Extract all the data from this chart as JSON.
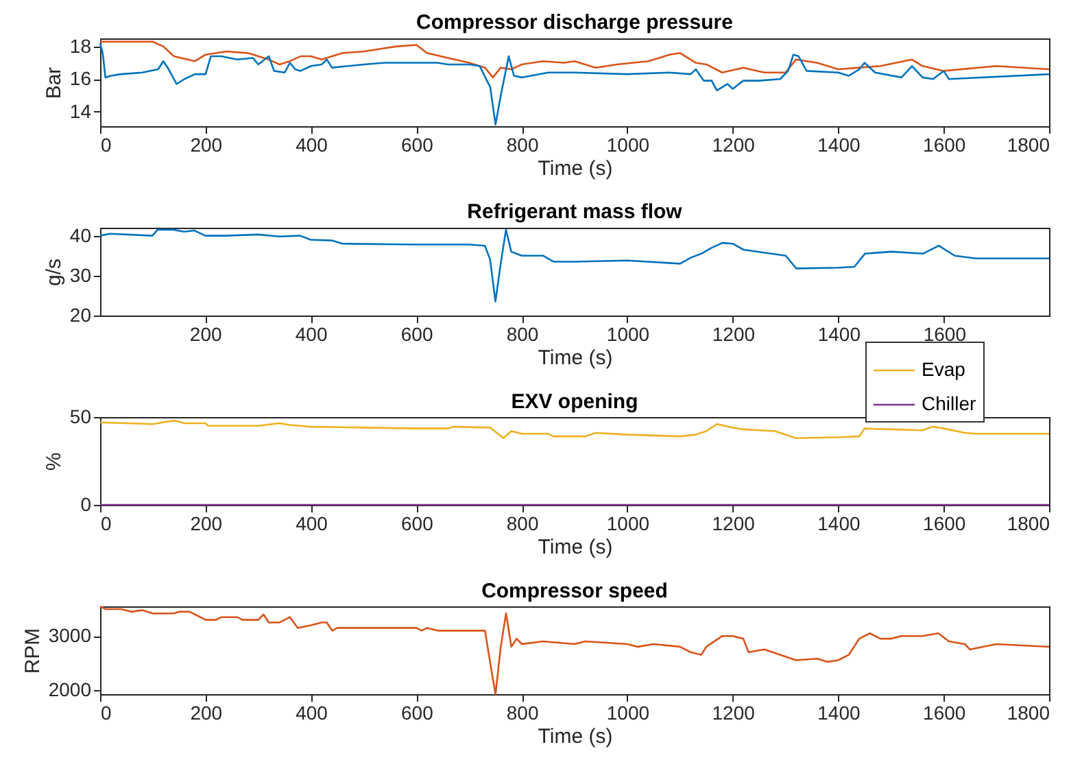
{
  "chart_data": [
    {
      "type": "line",
      "title": "Compressor discharge pressure",
      "xlabel": "Time (s)",
      "ylabel": "Bar",
      "xlim": [
        0,
        1800
      ],
      "xticks": [
        0,
        200,
        400,
        600,
        800,
        1000,
        1200,
        1400,
        1600,
        1800
      ],
      "ylim": [
        13.1,
        18.5
      ],
      "yticks": [
        14,
        16,
        18
      ],
      "grid": false,
      "legend": false,
      "series": [
        {
          "color": "#d95319",
          "x": [
            0,
            100,
            120,
            140,
            180,
            200,
            240,
            280,
            320,
            340,
            360,
            380,
            400,
            420,
            460,
            500,
            540,
            560,
            600,
            620,
            660,
            700,
            730,
            740,
            745,
            760,
            780,
            800,
            840,
            880,
            900,
            940,
            980,
            1040,
            1080,
            1100,
            1130,
            1150,
            1180,
            1220,
            1260,
            1290,
            1300,
            1320,
            1360,
            1400,
            1440,
            1480,
            1540,
            1560,
            1600,
            1700,
            1800
          ],
          "values": [
            18.3,
            18.3,
            18.0,
            17.4,
            17.1,
            17.5,
            17.7,
            17.6,
            17.2,
            16.9,
            17.1,
            17.4,
            17.4,
            17.2,
            17.6,
            17.7,
            17.9,
            18.0,
            18.1,
            17.6,
            17.3,
            17.0,
            16.7,
            16.3,
            16.1,
            16.7,
            16.6,
            16.9,
            17.1,
            17.0,
            17.1,
            16.7,
            16.9,
            17.1,
            17.5,
            17.6,
            17.0,
            16.9,
            16.4,
            16.7,
            16.4,
            16.4,
            16.4,
            17.2,
            17.0,
            16.6,
            16.7,
            16.8,
            17.2,
            16.8,
            16.5,
            16.8,
            16.6
          ]
        },
        {
          "color": "#0072bd",
          "x": [
            0,
            5,
            10,
            20,
            40,
            80,
            110,
            120,
            130,
            145,
            160,
            180,
            200,
            210,
            230,
            260,
            290,
            300,
            320,
            330,
            350,
            360,
            370,
            380,
            400,
            420,
            430,
            440,
            500,
            540,
            600,
            640,
            660,
            700,
            720,
            740,
            750,
            760,
            775,
            785,
            800,
            850,
            900,
            1000,
            1080,
            1120,
            1130,
            1145,
            1160,
            1170,
            1190,
            1200,
            1220,
            1250,
            1290,
            1305,
            1315,
            1325,
            1340,
            1400,
            1420,
            1440,
            1450,
            1470,
            1520,
            1540,
            1560,
            1580,
            1600,
            1610,
            1800
          ],
          "values": [
            18.2,
            17.6,
            16.1,
            16.2,
            16.3,
            16.4,
            16.6,
            17.1,
            16.6,
            15.7,
            16.0,
            16.3,
            16.3,
            17.4,
            17.4,
            17.2,
            17.3,
            16.9,
            17.4,
            16.5,
            16.4,
            17.0,
            16.6,
            16.5,
            16.8,
            16.9,
            17.2,
            16.7,
            16.9,
            17.0,
            17.0,
            17.0,
            16.9,
            16.9,
            16.8,
            15.5,
            13.2,
            15.0,
            17.4,
            16.2,
            16.1,
            16.4,
            16.4,
            16.3,
            16.4,
            16.3,
            16.6,
            15.9,
            15.9,
            15.3,
            15.7,
            15.4,
            15.9,
            15.9,
            16.0,
            16.5,
            17.5,
            17.4,
            16.5,
            16.4,
            16.2,
            16.6,
            17.0,
            16.4,
            16.1,
            16.8,
            16.1,
            16.0,
            16.5,
            16.0,
            16.3
          ]
        }
      ]
    },
    {
      "type": "line",
      "title": "Refrigerant mass flow",
      "xlabel": "Time (s)",
      "ylabel": "g/s",
      "xlim": [
        1,
        1799
      ],
      "xticks": [
        200,
        400,
        600,
        800,
        1000,
        1200,
        1400,
        1600
      ],
      "ylim": [
        20,
        42
      ],
      "yticks": [
        20,
        30,
        40
      ],
      "grid": false,
      "legend": false,
      "series": [
        {
          "color": "#0072bd",
          "x": [
            1,
            20,
            100,
            110,
            140,
            160,
            180,
            200,
            240,
            300,
            340,
            380,
            400,
            440,
            460,
            600,
            700,
            730,
            740,
            750,
            760,
            770,
            780,
            800,
            840,
            860,
            900,
            1000,
            1100,
            1120,
            1140,
            1160,
            1180,
            1200,
            1220,
            1300,
            1320,
            1400,
            1430,
            1450,
            1500,
            1560,
            1590,
            1620,
            1660,
            1799
          ],
          "values": [
            40,
            40.5,
            40,
            41.5,
            41.5,
            41,
            41.3,
            40,
            40,
            40.3,
            39.8,
            40,
            39,
            38.8,
            38,
            37.8,
            37.8,
            37.5,
            34,
            23.5,
            33,
            41.5,
            36,
            35,
            35,
            33.5,
            33.5,
            33.8,
            33,
            34.5,
            35.5,
            37,
            38.2,
            38,
            36.5,
            35,
            31.8,
            32,
            32.2,
            35.5,
            36,
            35.5,
            37.5,
            35,
            34.3,
            34.3
          ]
        }
      ]
    },
    {
      "type": "line",
      "title": "EXV opening",
      "xlabel": "Time (s)",
      "ylabel": "%",
      "xlim": [
        0,
        1800
      ],
      "xticks": [
        0,
        200,
        400,
        600,
        800,
        1000,
        1200,
        1400,
        1600,
        1800
      ],
      "ylim": [
        0,
        50
      ],
      "yticks": [
        0,
        50
      ],
      "grid": false,
      "legend": "top right",
      "series": [
        {
          "name": "Evap",
          "color": "#edb120",
          "x": [
            0,
            100,
            140,
            160,
            200,
            205,
            300,
            340,
            360,
            400,
            500,
            600,
            660,
            670,
            740,
            765,
            780,
            800,
            850,
            860,
            920,
            940,
            1000,
            1100,
            1130,
            1150,
            1170,
            1200,
            1220,
            1280,
            1320,
            1400,
            1440,
            1450,
            1500,
            1560,
            1580,
            1600,
            1640,
            1660,
            1800
          ],
          "values": [
            47,
            46,
            48,
            46.5,
            46.5,
            45,
            45,
            46.5,
            45.5,
            44.5,
            44,
            43.5,
            43.5,
            44.5,
            44,
            38,
            42,
            40.5,
            40.5,
            39,
            39,
            41,
            40,
            39,
            40,
            42,
            46,
            44,
            43,
            42,
            38,
            38.5,
            39,
            43.5,
            43,
            42.5,
            44.5,
            43.5,
            41,
            40.5,
            40.5
          ]
        },
        {
          "name": "Chiller",
          "color": "#7e2f8e",
          "x": [
            0,
            1800
          ],
          "values": [
            0,
            0
          ]
        }
      ]
    },
    {
      "type": "line",
      "title": "Compressor speed",
      "xlabel": "Time (s)",
      "ylabel": "RPM",
      "xlim": [
        0,
        1800
      ],
      "xticks": [
        0,
        200,
        400,
        600,
        800,
        1000,
        1200,
        1400,
        1600,
        1800
      ],
      "ylim": [
        1920,
        3550
      ],
      "yticks": [
        2000,
        3000
      ],
      "grid": false,
      "legend": false,
      "series": [
        {
          "color": "#d95319",
          "x": [
            0,
            10,
            40,
            60,
            80,
            100,
            140,
            150,
            170,
            180,
            200,
            220,
            230,
            260,
            270,
            300,
            310,
            320,
            340,
            350,
            360,
            375,
            400,
            420,
            430,
            440,
            450,
            600,
            610,
            620,
            640,
            730,
            740,
            750,
            760,
            770,
            780,
            790,
            800,
            840,
            900,
            920,
            1000,
            1020,
            1050,
            1100,
            1120,
            1140,
            1150,
            1180,
            1200,
            1220,
            1230,
            1260,
            1320,
            1360,
            1380,
            1400,
            1420,
            1440,
            1460,
            1480,
            1500,
            1520,
            1560,
            1590,
            1610,
            1640,
            1650,
            1700,
            1800
          ],
          "values": [
            3550,
            3500,
            3500,
            3450,
            3480,
            3420,
            3420,
            3450,
            3450,
            3400,
            3300,
            3300,
            3350,
            3350,
            3300,
            3300,
            3400,
            3250,
            3250,
            3300,
            3350,
            3150,
            3200,
            3250,
            3250,
            3100,
            3150,
            3150,
            3100,
            3150,
            3100,
            3100,
            2500,
            1920,
            2800,
            3420,
            2800,
            2950,
            2850,
            2900,
            2850,
            2900,
            2850,
            2800,
            2850,
            2800,
            2700,
            2650,
            2800,
            3000,
            3000,
            2950,
            2700,
            2750,
            2550,
            2580,
            2520,
            2550,
            2650,
            2950,
            3050,
            2950,
            2950,
            3000,
            3000,
            3050,
            2900,
            2850,
            2750,
            2850,
            2800
          ]
        }
      ]
    }
  ]
}
